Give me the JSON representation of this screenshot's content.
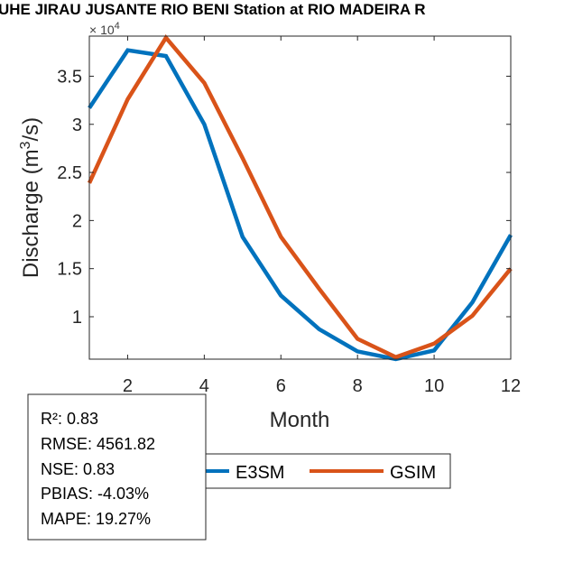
{
  "chart_data": {
    "type": "line",
    "title": "UHE JIRAU JUSANTE RIO BENI  Station at  RIO MADEIRA  R",
    "xlabel": "Month",
    "ylabel_main": "Discharge (m",
    "ylabel_sup": "3",
    "ylabel_end": "/s)",
    "y_multiplier_base": "× 10",
    "y_multiplier_exp": "4",
    "xlim": [
      1,
      12
    ],
    "ylim": [
      0.559,
      3.917
    ],
    "xticks": [
      2,
      4,
      6,
      8,
      10,
      12
    ],
    "yticks": [
      1,
      1.5,
      2,
      2.5,
      3,
      3.5
    ],
    "ytick_labels": [
      "1",
      "1.5",
      "2",
      "2.5",
      "3",
      "3.5"
    ],
    "grid": false,
    "x": [
      1,
      2,
      3,
      4,
      5,
      6,
      7,
      8,
      9,
      10,
      11,
      12
    ],
    "series": [
      {
        "name": "E3SM",
        "color": "#0072BD",
        "values": [
          3.17,
          3.77,
          3.71,
          3.0,
          1.83,
          1.22,
          0.87,
          0.64,
          0.56,
          0.65,
          1.15,
          1.85
        ]
      },
      {
        "name": "GSIM",
        "color": "#D95319",
        "values": [
          2.39,
          3.26,
          3.9,
          3.43,
          2.65,
          1.83,
          1.29,
          0.77,
          0.58,
          0.72,
          1.01,
          1.5
        ]
      }
    ],
    "legend_placement": "bottom",
    "stats": [
      "R²: 0.83",
      "RMSE: 4561.82",
      "NSE: 0.83",
      "PBIAS: -4.03%",
      "MAPE: 19.27%"
    ]
  }
}
